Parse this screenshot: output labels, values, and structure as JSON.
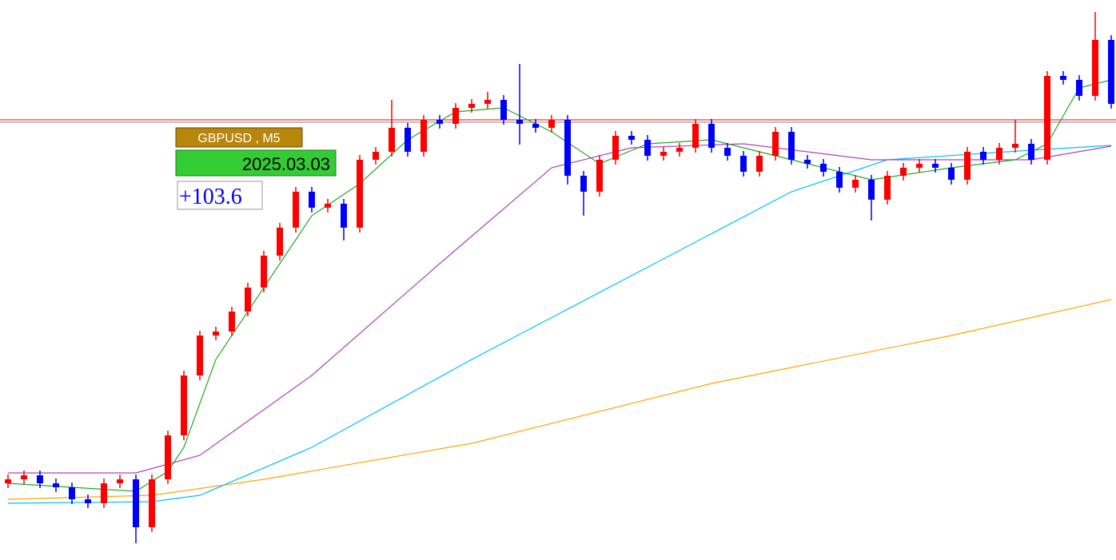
{
  "chart_data": {
    "type": "candlestick",
    "symbol_label": "GBPUSD , M5",
    "date_label": "2025.03.03",
    "gain_label": "+103.6",
    "xlim": [
      0.5,
      70.3
    ],
    "ylim": [
      0,
      701
    ],
    "up_color": "#ff0000",
    "down_color": "#0000ff",
    "open": [
      96,
      101,
      106,
      96,
      91,
      76,
      71,
      96,
      101,
      41,
      101,
      156,
      231,
      281,
      286,
      311,
      341,
      381,
      416,
      461,
      441,
      446,
      416,
      501,
      511,
      541,
      511,
      551,
      546,
      566,
      571,
      576,
      551,
      546,
      541,
      551,
      481,
      461,
      501,
      531,
      526,
      506,
      511,
      516,
      546,
      516,
      506,
      486,
      506,
      536,
      501,
      496,
      486,
      466,
      476,
      451,
      481,
      491,
      496,
      491,
      476,
      511,
      501,
      516,
      521,
      501,
      606,
      601,
      581,
      651
    ],
    "high": [
      107,
      112,
      112,
      102,
      97,
      82,
      102,
      107,
      107,
      107,
      162,
      237,
      287,
      292,
      317,
      347,
      387,
      422,
      467,
      467,
      452,
      452,
      507,
      517,
      576,
      547,
      557,
      557,
      572,
      577,
      586,
      582,
      621,
      552,
      557,
      557,
      487,
      507,
      537,
      537,
      532,
      517,
      522,
      552,
      552,
      522,
      512,
      512,
      542,
      542,
      507,
      502,
      492,
      482,
      482,
      487,
      497,
      502,
      502,
      497,
      517,
      517,
      522,
      551,
      527,
      612,
      612,
      607,
      686,
      657
    ],
    "low": [
      90,
      95,
      90,
      85,
      70,
      65,
      65,
      90,
      21,
      35,
      95,
      150,
      225,
      275,
      280,
      305,
      335,
      375,
      410,
      435,
      435,
      400,
      410,
      495,
      505,
      505,
      505,
      540,
      540,
      560,
      565,
      545,
      520,
      535,
      535,
      470,
      431,
      455,
      495,
      520,
      500,
      500,
      505,
      510,
      510,
      500,
      480,
      480,
      500,
      495,
      490,
      480,
      460,
      460,
      425,
      445,
      475,
      485,
      485,
      470,
      470,
      495,
      495,
      510,
      495,
      495,
      595,
      575,
      575,
      565
    ],
    "close": [
      101,
      106,
      96,
      91,
      76,
      71,
      96,
      101,
      41,
      101,
      156,
      231,
      281,
      286,
      311,
      341,
      381,
      416,
      461,
      441,
      446,
      416,
      501,
      511,
      541,
      511,
      551,
      546,
      566,
      571,
      576,
      551,
      546,
      541,
      551,
      481,
      461,
      501,
      531,
      526,
      506,
      511,
      516,
      546,
      516,
      506,
      486,
      506,
      536,
      501,
      496,
      486,
      466,
      476,
      451,
      481,
      491,
      496,
      491,
      476,
      511,
      501,
      516,
      521,
      501,
      606,
      601,
      581,
      651,
      571
    ],
    "lines": [
      {
        "color": "#ffa500",
        "x": [
          1,
          10,
          17,
          30,
          45,
          60,
          70
        ],
        "values": [
          76,
          81,
          101,
          146,
          221,
          281,
          326
        ]
      },
      {
        "color": "#00bfff",
        "x": [
          1,
          10,
          13,
          20,
          30,
          40,
          50,
          56,
          65,
          70
        ],
        "values": [
          71,
          73,
          81,
          141,
          251,
          356,
          461,
          501,
          513,
          519
        ]
      },
      {
        "color": "#b040c0",
        "x": [
          1,
          9,
          13,
          20,
          28,
          35,
          40,
          47,
          55,
          65,
          70
        ],
        "values": [
          109,
          109,
          131,
          231,
          371,
          491,
          516,
          521,
          501,
          501,
          518
        ]
      },
      {
        "color": "#22aa22",
        "x": [
          1,
          9,
          11,
          12,
          14,
          17,
          20,
          23,
          26,
          29,
          32,
          35,
          38,
          41,
          45,
          48,
          51,
          55,
          60,
          64,
          66,
          68,
          70
        ],
        "values": [
          96,
          86,
          111,
          141,
          251,
          341,
          431,
          471,
          526,
          561,
          566,
          536,
          496,
          521,
          526,
          511,
          496,
          476,
          491,
          501,
          521,
          591,
          601
        ]
      }
    ],
    "hlines": [
      {
        "color": "#ff0000",
        "value": 551
      },
      {
        "color": "#808080",
        "value": 548
      }
    ]
  }
}
